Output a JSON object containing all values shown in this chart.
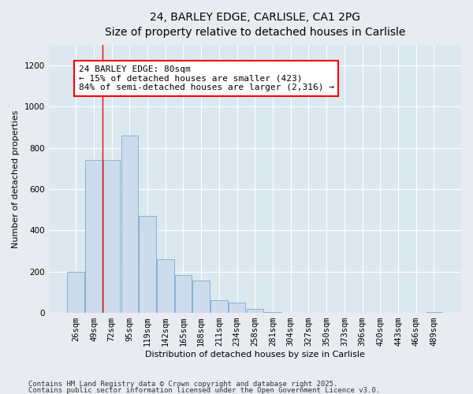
{
  "title_line1": "24, BARLEY EDGE, CARLISLE, CA1 2PG",
  "title_line2": "Size of property relative to detached houses in Carlisle",
  "xlabel": "Distribution of detached houses by size in Carlisle",
  "ylabel": "Number of detached properties",
  "bar_color": "#cddcec",
  "bar_edge_color": "#7aaacf",
  "background_color": "#dce8f0",
  "fig_background": "#e8ecf0",
  "categories": [
    "26sqm",
    "49sqm",
    "72sqm",
    "95sqm",
    "119sqm",
    "142sqm",
    "165sqm",
    "188sqm",
    "211sqm",
    "234sqm",
    "258sqm",
    "281sqm",
    "304sqm",
    "327sqm",
    "350sqm",
    "373sqm",
    "396sqm",
    "420sqm",
    "443sqm",
    "466sqm",
    "489sqm"
  ],
  "values": [
    200,
    740,
    740,
    860,
    470,
    260,
    185,
    155,
    60,
    50,
    20,
    3,
    0,
    0,
    0,
    0,
    0,
    0,
    0,
    0,
    3
  ],
  "ylim": [
    0,
    1300
  ],
  "yticks": [
    0,
    200,
    400,
    600,
    800,
    1000,
    1200
  ],
  "red_line_x": 2.0,
  "annotation_text": "24 BARLEY EDGE: 80sqm\n← 15% of detached houses are smaller (423)\n84% of semi-detached houses are larger (2,316) →",
  "footnote_line1": "Contains HM Land Registry data © Crown copyright and database right 2025.",
  "footnote_line2": "Contains public sector information licensed under the Open Government Licence v3.0.",
  "grid_color": "#ffffff",
  "title_fontsize": 10,
  "subtitle_fontsize": 9,
  "axis_label_fontsize": 8,
  "tick_fontsize": 7.5,
  "annotation_fontsize": 8,
  "footnote_fontsize": 6.5
}
